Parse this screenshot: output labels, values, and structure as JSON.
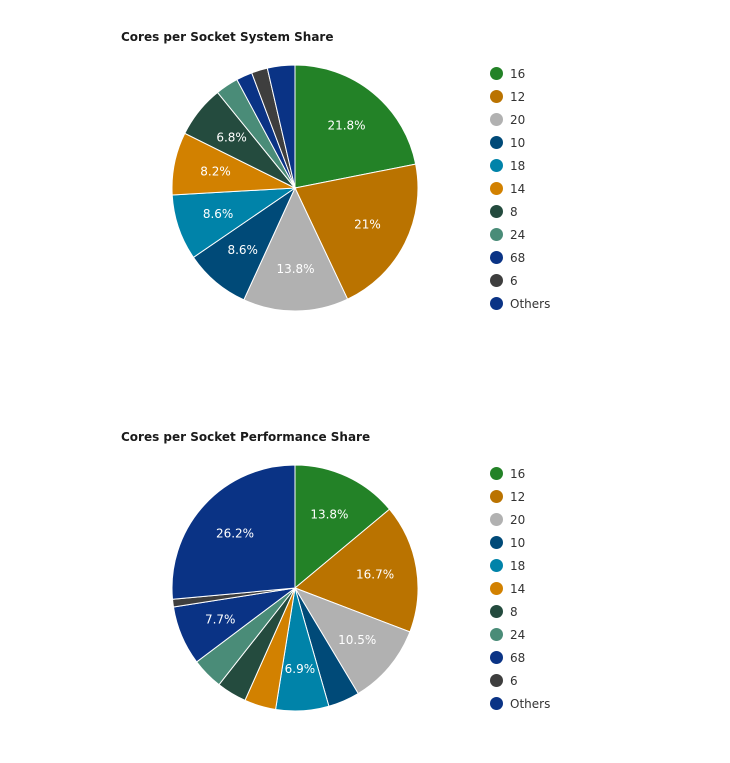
{
  "chart_data": [
    {
      "type": "pie",
      "title": "Cores per Socket System Share",
      "legend_position": "right",
      "categories": [
        "16",
        "12",
        "20",
        "10",
        "18",
        "14",
        "8",
        "24",
        "68",
        "6",
        "Others"
      ],
      "colors": [
        "#238227",
        "#ba7300",
        "#b1b1b1",
        "#004a78",
        "#0083a9",
        "#d28100",
        "#244b3e",
        "#4a8c78",
        "#0a3385",
        "#3e3e3e",
        "#0a3385"
      ],
      "values": [
        21.8,
        21,
        13.8,
        8.6,
        8.6,
        8.2,
        6.8,
        3.0,
        2.1,
        2.1,
        3.6
      ],
      "data_labels": [
        "21.8%",
        "21%",
        "13.8%",
        "8.6%",
        "8.6%",
        "8.2%",
        "6.8%",
        "",
        "",
        "",
        ""
      ]
    },
    {
      "type": "pie",
      "title": "Cores per Socket Performance Share",
      "legend_position": "right",
      "categories": [
        "16",
        "12",
        "20",
        "10",
        "18",
        "14",
        "8",
        "24",
        "68",
        "6",
        "Others"
      ],
      "colors": [
        "#238227",
        "#ba7300",
        "#b1b1b1",
        "#004a78",
        "#0083a9",
        "#d28100",
        "#244b3e",
        "#4a8c78",
        "#0a3385",
        "#3e3e3e",
        "#0a3385"
      ],
      "values": [
        13.8,
        16.7,
        10.5,
        4.1,
        6.9,
        4.1,
        3.9,
        4.1,
        7.7,
        1.0,
        26.2
      ],
      "data_labels": [
        "13.8%",
        "16.7%",
        "10.5%",
        "",
        "6.9%",
        "",
        "",
        "",
        "7.7%",
        "",
        "26.2%"
      ]
    }
  ]
}
